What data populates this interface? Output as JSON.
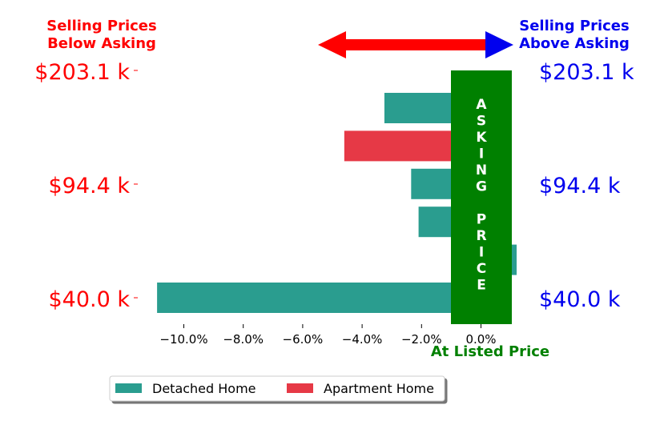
{
  "header": {
    "left_line1": "Selling Prices",
    "left_line2": "Below Asking",
    "right_line1": "Selling Prices",
    "right_line2": "Above Asking"
  },
  "band": {
    "letters": [
      "A",
      "S",
      "K",
      "I",
      "N",
      "G",
      "",
      "P",
      "R",
      "I",
      "C",
      "E"
    ]
  },
  "bottom_label": "At Listed Price",
  "price_labels_left": [
    "$203.1 k",
    "$94.4 k",
    "$40.0 k"
  ],
  "price_labels_right": [
    "$203.1 k",
    "$94.4 k",
    "$40.0 k"
  ],
  "colors": {
    "below": "#ff0000",
    "above": "#0000ee",
    "band": "#008000",
    "detached": "#2a9d8f",
    "apartment": "#e63946"
  },
  "legend": {
    "detached": "Detached Home",
    "apartment": "Apartment Home"
  },
  "chart_data": {
    "type": "bar",
    "orientation": "horizontal",
    "xlim": [
      -11.2,
      1.2
    ],
    "xticks": [
      -10,
      -8,
      -6,
      -4,
      -2,
      0
    ],
    "xtick_labels": [
      "−10.0%",
      "−8.0%",
      "−6.0%",
      "−4.0%",
      "−2.0%",
      "0.0%"
    ],
    "bars": [
      {
        "series": "Detached Home",
        "value": -3.25
      },
      {
        "series": "Apartment Home",
        "value": -4.6
      },
      {
        "series": "Detached Home",
        "value": -2.35
      },
      {
        "series": "Detached Home",
        "value": -2.1
      },
      {
        "series": "Detached Home",
        "value": 1.2
      },
      {
        "series": "Detached Home",
        "value": -10.9
      }
    ],
    "legend_position": "bottom-center"
  }
}
